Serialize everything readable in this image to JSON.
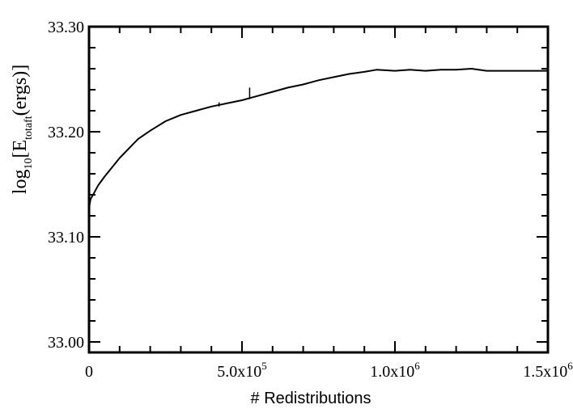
{
  "chart_data": {
    "type": "line",
    "xlabel": "# Redistributions",
    "ylabel": {
      "prefix": "log",
      "log_subscript": "10",
      "bracket_open": "[E",
      "subscript": "totaft",
      "suffix": "(ergs)]"
    },
    "xlim": [
      0,
      1500000
    ],
    "ylim": [
      32.99,
      33.3
    ],
    "x_ticks": [
      {
        "value": 0,
        "mantissa": "0",
        "exponent": ""
      },
      {
        "value": 500000,
        "mantissa": "5.0x10",
        "exponent": "5"
      },
      {
        "value": 1000000,
        "mantissa": "1.0x10",
        "exponent": "6"
      },
      {
        "value": 1500000,
        "mantissa": "1.5x10",
        "exponent": "6"
      }
    ],
    "y_ticks": [
      {
        "value": 33.0,
        "label": "33.00"
      },
      {
        "value": 33.1,
        "label": "33.10"
      },
      {
        "value": 33.2,
        "label": "33.20"
      },
      {
        "value": 33.3,
        "label": "33.30"
      }
    ],
    "grid": false,
    "series": [
      {
        "color": "#000000",
        "x": [
          0,
          5000,
          15000,
          30000,
          50000,
          75000,
          100000,
          130000,
          160000,
          200000,
          250000,
          300000,
          350000,
          400000,
          450000,
          500000,
          550000,
          600000,
          650000,
          700000,
          750000,
          800000,
          850000,
          900000,
          940000,
          1000000,
          1050000,
          1100000,
          1150000,
          1200000,
          1250000,
          1300000,
          1350000,
          1400000,
          1450000,
          1500000
        ],
        "values": [
          33.127,
          33.136,
          33.141,
          33.149,
          33.157,
          33.166,
          33.175,
          33.184,
          33.193,
          33.201,
          33.21,
          33.216,
          33.22,
          33.224,
          33.227,
          33.23,
          33.234,
          33.238,
          33.242,
          33.245,
          33.249,
          33.252,
          33.255,
          33.257,
          33.259,
          33.258,
          33.259,
          33.258,
          33.259,
          33.259,
          33.26,
          33.258,
          33.258,
          33.258,
          33.258,
          33.258
        ]
      }
    ],
    "spikes": [
      {
        "x": 425000,
        "y_low": 33.224,
        "y_high": 33.228
      },
      {
        "x": 525000,
        "y_low": 33.231,
        "y_high": 33.242
      }
    ]
  }
}
